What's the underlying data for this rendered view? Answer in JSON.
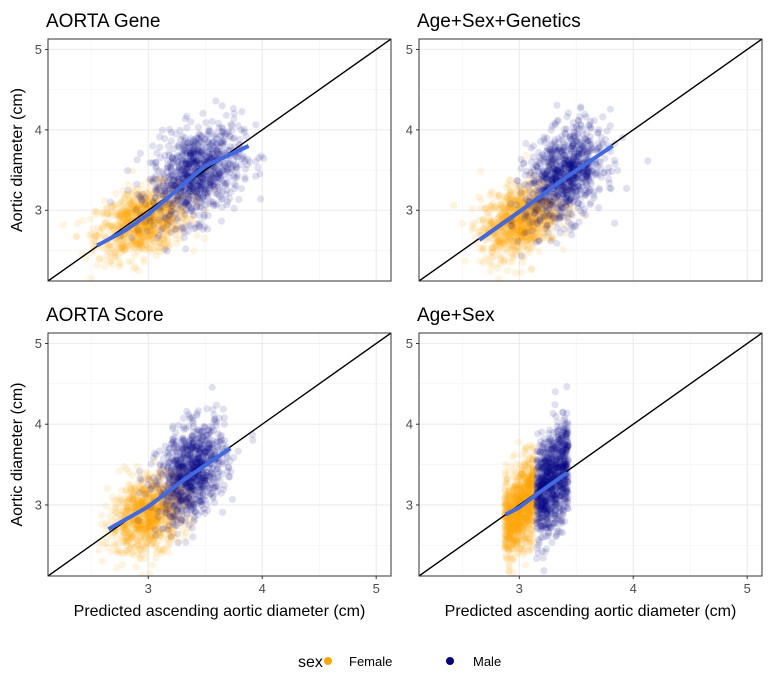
{
  "chart_data": {
    "type": "scatter",
    "layout": "2x2 facets",
    "xlabel": "Predicted ascending aortic diameter (cm)",
    "ylabel": "Aortic diameter (cm)",
    "xlim": [
      2.12,
      5.13
    ],
    "ylim": [
      2.12,
      5.13
    ],
    "xticks": [
      "3",
      "4",
      "5"
    ],
    "yticks": [
      "3",
      "4",
      "5"
    ],
    "grid": true,
    "reference_line": "y = x",
    "legend": {
      "title": "sex",
      "position": "bottom",
      "entries": [
        {
          "label": "Female",
          "color": "#FFA500"
        },
        {
          "label": "Male",
          "color": "#000080"
        }
      ]
    },
    "trend_color": "#4169E1",
    "panels": [
      {
        "title": "AORTA Gene",
        "female": {
          "x_mean": 2.95,
          "x_sd": 0.2,
          "y_mean": 2.85,
          "y_sd": 0.22,
          "n": 900
        },
        "male": {
          "x_mean": 3.42,
          "x_sd": 0.2,
          "y_mean": 3.45,
          "y_sd": 0.3,
          "n": 900
        },
        "x_dist": "normal",
        "trend": [
          [
            2.55,
            2.56
          ],
          [
            2.8,
            2.75
          ],
          [
            3.0,
            2.95
          ],
          [
            3.25,
            3.25
          ],
          [
            3.5,
            3.55
          ],
          [
            3.88,
            3.8
          ]
        ]
      },
      {
        "title": "Age+Sex+Genetics",
        "female": {
          "x_mean": 3.0,
          "x_sd": 0.17,
          "y_mean": 2.88,
          "y_sd": 0.23,
          "n": 900
        },
        "male": {
          "x_mean": 3.4,
          "x_sd": 0.17,
          "y_mean": 3.42,
          "y_sd": 0.3,
          "n": 900
        },
        "x_dist": "normal",
        "trend": [
          [
            2.65,
            2.63
          ],
          [
            3.0,
            2.98
          ],
          [
            3.4,
            3.4
          ],
          [
            3.82,
            3.8
          ]
        ]
      },
      {
        "title": "AORTA Score",
        "female": {
          "x_mean": 3.0,
          "x_sd": 0.17,
          "y_mean": 2.9,
          "y_sd": 0.24,
          "n": 900
        },
        "male": {
          "x_mean": 3.38,
          "x_sd": 0.15,
          "y_mean": 3.4,
          "y_sd": 0.3,
          "n": 900
        },
        "x_dist": "normal",
        "trend": [
          [
            2.65,
            2.7
          ],
          [
            3.0,
            2.98
          ],
          [
            3.3,
            3.3
          ],
          [
            3.72,
            3.7
          ]
        ]
      },
      {
        "title": "Age+Sex",
        "female": {
          "x_mean": 3.0,
          "x_sd": 0.13,
          "y_mean": 2.95,
          "y_sd": 0.28,
          "n": 900
        },
        "male": {
          "x_mean": 3.29,
          "x_sd": 0.14,
          "y_mean": 3.3,
          "y_sd": 0.32,
          "n": 900
        },
        "x_dist": "uniform",
        "trend": [
          [
            2.88,
            2.88
          ],
          [
            3.0,
            2.97
          ],
          [
            3.15,
            3.13
          ],
          [
            3.42,
            3.4
          ]
        ]
      }
    ]
  }
}
